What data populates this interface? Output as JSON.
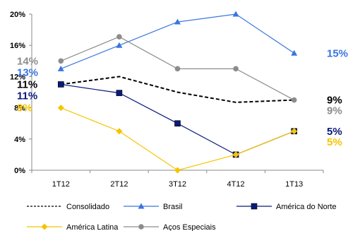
{
  "chart_data": {
    "type": "line",
    "title": "",
    "xlabel": "",
    "ylabel": "",
    "categories": [
      "1T12",
      "2T12",
      "3T12",
      "4T12",
      "1T13"
    ],
    "ylim": [
      0,
      20
    ],
    "yticks": [
      0,
      4,
      8,
      12,
      16,
      20
    ],
    "ytick_labels": [
      "0%",
      "4%",
      "8%",
      "12%",
      "16%",
      "20%"
    ],
    "grid": false,
    "legend_position": "bottom",
    "series": [
      {
        "name": "Consolidado",
        "values": [
          11,
          12,
          10,
          8.7,
          9
        ],
        "color": "#000000",
        "dashed": true,
        "marker": "none"
      },
      {
        "name": "Brasil",
        "values": [
          13,
          16,
          19,
          20,
          15
        ],
        "color": "#3a75e0",
        "dashed": false,
        "marker": "triangle"
      },
      {
        "name": "América do Norte",
        "values": [
          11,
          9.9,
          6,
          2,
          5
        ],
        "color": "#0a1a7a",
        "dashed": false,
        "marker": "square"
      },
      {
        "name": "América Latina",
        "values": [
          8,
          5,
          0,
          2,
          5
        ],
        "color": "#f5c400",
        "dashed": false,
        "marker": "diamond"
      },
      {
        "name": "Aços Especiais",
        "values": [
          14,
          17.1,
          13,
          13,
          9
        ],
        "color": "#8c8c8c",
        "dashed": false,
        "marker": "circle"
      }
    ],
    "annotations": [
      {
        "text": "14%",
        "color": "#8c8c8c",
        "side": "left",
        "value": 14
      },
      {
        "text": "13%",
        "color": "#3a75e0",
        "side": "left",
        "value": 13
      },
      {
        "text": "11%",
        "color": "#000000",
        "side": "left",
        "value": 11
      },
      {
        "text": "11%",
        "color": "#0a1a7a",
        "side": "left",
        "value": 11
      },
      {
        "text": "8%",
        "color": "#f5c400",
        "side": "left",
        "value": 8
      },
      {
        "text": "15%",
        "color": "#3a75e0",
        "side": "right",
        "value": 15
      },
      {
        "text": "9%",
        "color": "#000000",
        "side": "right",
        "value": 9
      },
      {
        "text": "9%",
        "color": "#8c8c8c",
        "side": "right",
        "value": 9
      },
      {
        "text": "5%",
        "color": "#0a1a7a",
        "side": "right",
        "value": 5
      },
      {
        "text": "5%",
        "color": "#f5c400",
        "side": "right",
        "value": 5
      }
    ]
  }
}
